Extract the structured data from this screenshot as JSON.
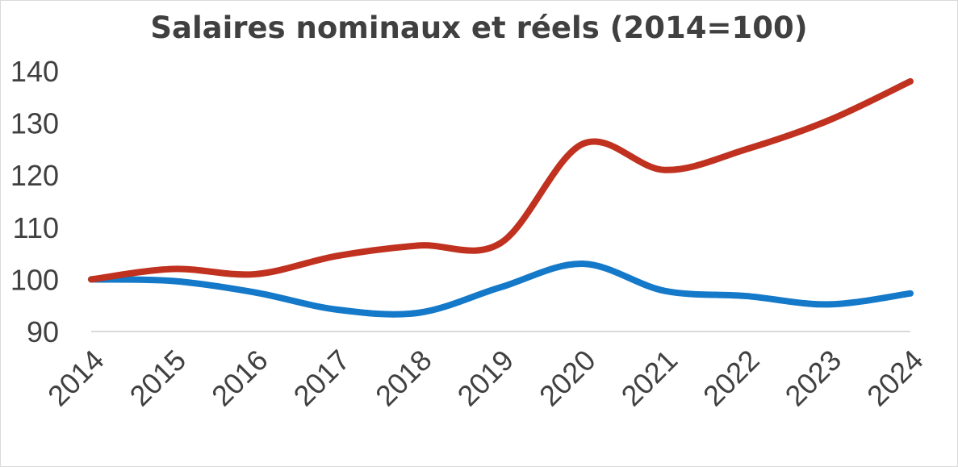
{
  "chart_data": {
    "type": "line",
    "title": "Salaires nominaux et réels (2014=100)",
    "xlabel": "",
    "ylabel": "",
    "x": [
      "2014",
      "2015",
      "2016",
      "2017",
      "2018",
      "2019",
      "2020",
      "2021",
      "2022",
      "2023",
      "2024"
    ],
    "ylim": [
      90,
      140
    ],
    "yticks": [
      90,
      100,
      110,
      120,
      130,
      140
    ],
    "smooth": true,
    "grid": false,
    "legend": "none",
    "series": [
      {
        "color": "#c0311f",
        "values": [
          100,
          102,
          101,
          104.5,
          106.5,
          107,
          126,
          121,
          125,
          130.5,
          138
        ]
      },
      {
        "color": "#1479c9",
        "values": [
          100,
          99.7,
          97.5,
          94.2,
          93.6,
          98.5,
          103,
          97.8,
          96.8,
          95.2,
          97.3
        ]
      }
    ],
    "axis_color": "#d9d9d9"
  }
}
